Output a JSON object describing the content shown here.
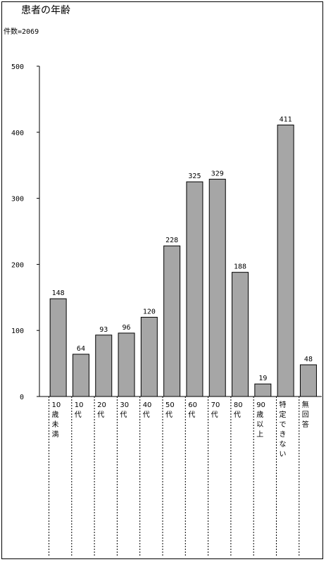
{
  "chart_data": {
    "type": "bar",
    "title": "患者の年齢",
    "subtitle": "件数=2069",
    "categories": [
      "10歳未満",
      "10代",
      "20代",
      "30代",
      "40代",
      "50代",
      "60代",
      "70代",
      "80代",
      "90歳以上",
      "特定できない",
      "無回答"
    ],
    "category_lines": [
      [
        "10",
        "歳",
        "未",
        "満"
      ],
      [
        "10",
        "代"
      ],
      [
        "20",
        "代"
      ],
      [
        "30",
        "代"
      ],
      [
        "40",
        "代"
      ],
      [
        "50",
        "代"
      ],
      [
        "60",
        "代"
      ],
      [
        "70",
        "代"
      ],
      [
        "80",
        "代"
      ],
      [
        "90",
        "歳",
        "以",
        "上"
      ],
      [
        "特",
        "定",
        "で",
        "き",
        "な",
        "い"
      ],
      [
        "無",
        "回",
        "答"
      ]
    ],
    "values": [
      148,
      64,
      93,
      96,
      120,
      228,
      325,
      329,
      188,
      19,
      411,
      48
    ],
    "yticks": [
      0,
      100,
      200,
      300,
      400,
      500
    ],
    "ylim": [
      0,
      500
    ],
    "grid": false,
    "bar_color": "#a6a6a6"
  }
}
